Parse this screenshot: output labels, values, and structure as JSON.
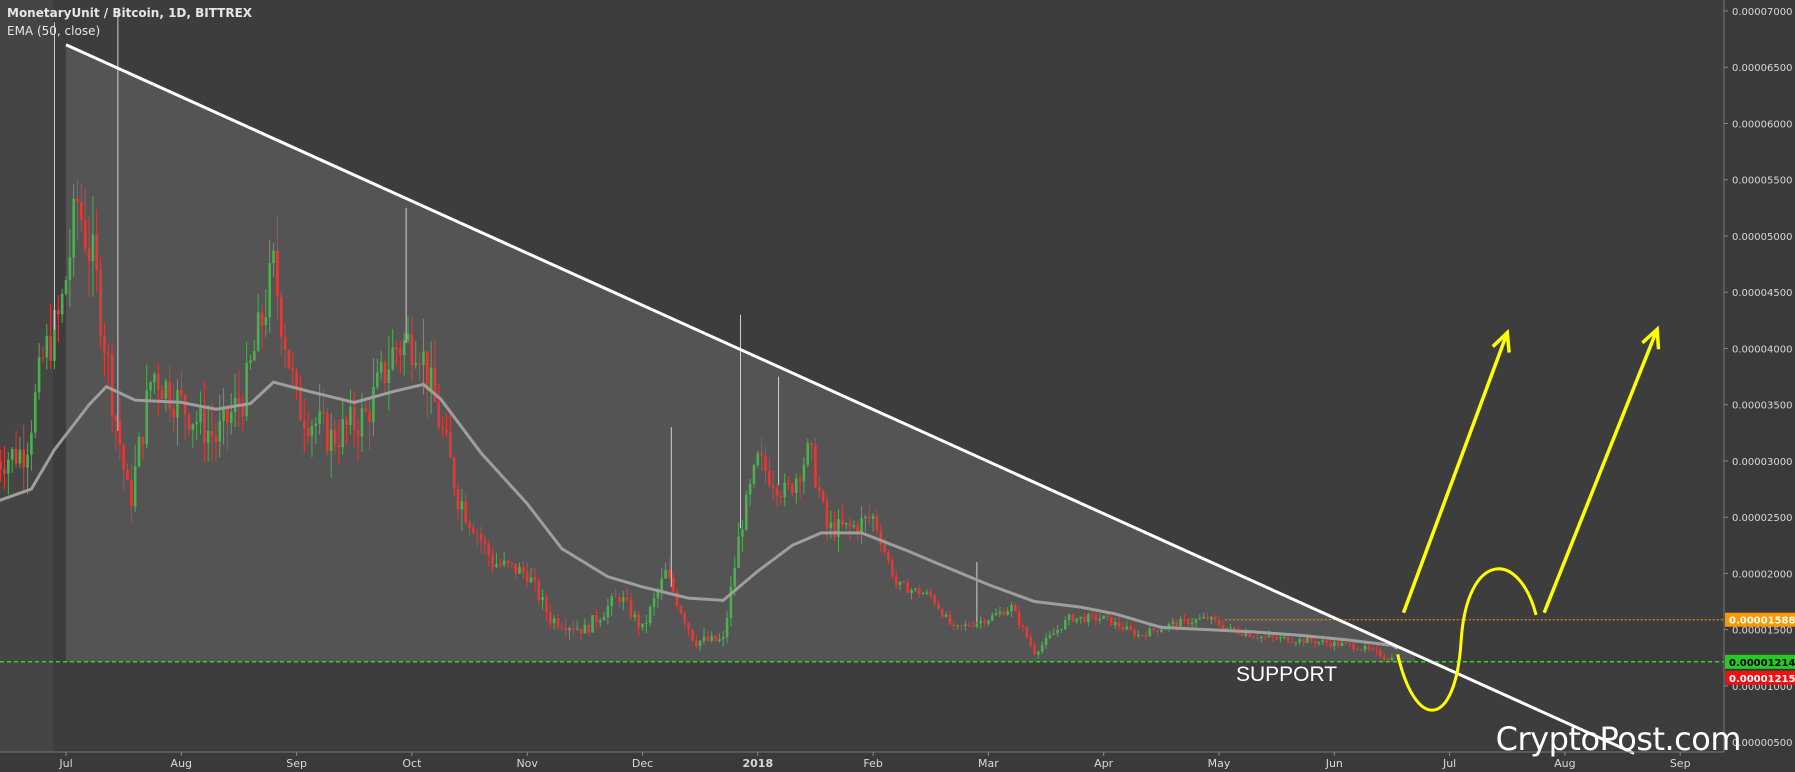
{
  "header": {
    "title": "MonetaryUnit / Bitcoin, 1D, BITTREX",
    "indicator": "EMA (50, close)"
  },
  "watermark": "CryptoPost.com",
  "annotations": {
    "support_label": "SUPPORT"
  },
  "colors": {
    "background": "#3a3a3a",
    "triangle_fill": "#585858",
    "up_candle": "#4caf50",
    "down_candle": "#e53935",
    "ema_line": "#9e9e9e",
    "trendline": "#ffffff",
    "support_line": "#22dd22",
    "resistance_line": "#ff9800",
    "projection": "#ffff00"
  },
  "chart_data": {
    "type": "candlestick",
    "title": "MonetaryUnit / Bitcoin, 1D, BITTREX",
    "y_axis": {
      "ticks": [
        "0.00000500",
        "0.00001000",
        "0.00001500",
        "0.00002000",
        "0.00002500",
        "0.00003000",
        "0.00003500",
        "0.00004000",
        "0.00004500",
        "0.00005000",
        "0.00005500",
        "0.00006000",
        "0.00006500",
        "0.00007000"
      ],
      "range": [
        4e-06,
        7.05e-05
      ],
      "position": "right"
    },
    "x_axis": {
      "ticks": [
        "Jul",
        "Aug",
        "Sep",
        "Oct",
        "Nov",
        "Dec",
        "2018",
        "Feb",
        "Mar",
        "Apr",
        "May",
        "Jun",
        "Jul",
        "Aug",
        "Sep"
      ],
      "range_months": [
        0,
        14.7
      ]
    },
    "price_badges": [
      {
        "value": "0.00001588",
        "color": "#ff9800"
      },
      {
        "value": "0.00001214",
        "color": "#22cc22"
      },
      {
        "value": "0.00001215",
        "color": "#ee1111"
      }
    ],
    "levels": {
      "support": 1.214e-05,
      "resistance": 1.588e-05
    },
    "ema_50": [
      [
        -0.6,
        2.64e-05
      ],
      [
        -0.3,
        2.75e-05
      ],
      [
        -0.1,
        3.1e-05
      ],
      [
        0.2,
        3.5e-05
      ],
      [
        0.35,
        3.66e-05
      ],
      [
        0.6,
        3.54e-05
      ],
      [
        1.0,
        3.52e-05
      ],
      [
        1.3,
        3.46e-05
      ],
      [
        1.6,
        3.51e-05
      ],
      [
        1.8,
        3.7e-05
      ],
      [
        2.1,
        3.62e-05
      ],
      [
        2.5,
        3.52e-05
      ],
      [
        2.85,
        3.62e-05
      ],
      [
        3.1,
        3.68e-05
      ],
      [
        3.25,
        3.55e-05
      ],
      [
        3.6,
        3.07e-05
      ],
      [
        4.0,
        2.62e-05
      ],
      [
        4.3,
        2.22e-05
      ],
      [
        4.7,
        1.97e-05
      ],
      [
        5.0,
        1.88e-05
      ],
      [
        5.4,
        1.78e-05
      ],
      [
        5.7,
        1.76e-05
      ],
      [
        6.0,
        2.02e-05
      ],
      [
        6.3,
        2.25e-05
      ],
      [
        6.55,
        2.36e-05
      ],
      [
        6.9,
        2.36e-05
      ],
      [
        7.3,
        2.2e-05
      ],
      [
        7.6,
        2.07e-05
      ],
      [
        8.0,
        1.9e-05
      ],
      [
        8.4,
        1.75e-05
      ],
      [
        8.8,
        1.7e-05
      ],
      [
        9.1,
        1.64e-05
      ],
      [
        9.5,
        1.52e-05
      ],
      [
        9.9,
        1.5e-05
      ],
      [
        10.3,
        1.48e-05
      ],
      [
        10.7,
        1.45e-05
      ],
      [
        11.1,
        1.41e-05
      ],
      [
        11.5,
        1.36e-05
      ],
      [
        11.55,
        1.33e-05
      ]
    ],
    "trendline": {
      "from": [
        0.0,
        6.7e-05
      ],
      "to": [
        13.6,
        4e-06
      ]
    },
    "candle_path": [
      [
        -0.6,
        3e-05
      ],
      [
        -0.35,
        3.1e-05
      ],
      [
        -0.2,
        3.9e-05
      ],
      [
        -0.05,
        4.3e-05
      ],
      [
        0.1,
        5.3e-05
      ],
      [
        0.25,
        4.7e-05
      ],
      [
        0.4,
        3.6e-05
      ],
      [
        0.55,
        2.6e-05
      ],
      [
        0.75,
        3.8e-05
      ],
      [
        1.0,
        3.5e-05
      ],
      [
        1.3,
        3.2e-05
      ],
      [
        1.55,
        3.6e-05
      ],
      [
        1.8,
        4.7e-05
      ],
      [
        2.0,
        3.5e-05
      ],
      [
        2.3,
        3.2e-05
      ],
      [
        2.6,
        3.4e-05
      ],
      [
        2.85,
        4e-05
      ],
      [
        3.05,
        4.1e-05
      ],
      [
        3.2,
        3.5e-05
      ],
      [
        3.4,
        2.7e-05
      ],
      [
        3.7,
        2.1e-05
      ],
      [
        4.0,
        2e-05
      ],
      [
        4.2,
        1.6e-05
      ],
      [
        4.5,
        1.5e-05
      ],
      [
        4.8,
        1.8e-05
      ],
      [
        5.0,
        1.5e-05
      ],
      [
        5.2,
        2e-05
      ],
      [
        5.45,
        1.4e-05
      ],
      [
        5.7,
        1.4e-05
      ],
      [
        5.85,
        2.4e-05
      ],
      [
        6.0,
        3e-05
      ],
      [
        6.25,
        2.7e-05
      ],
      [
        6.45,
        3.1e-05
      ],
      [
        6.6,
        2.4e-05
      ],
      [
        6.8,
        2.4e-05
      ],
      [
        7.0,
        2.5e-05
      ],
      [
        7.2,
        1.9e-05
      ],
      [
        7.5,
        1.8e-05
      ],
      [
        7.7,
        1.5e-05
      ],
      [
        8.0,
        1.6e-05
      ],
      [
        8.2,
        1.7e-05
      ],
      [
        8.4,
        1.3e-05
      ],
      [
        8.7,
        1.6e-05
      ],
      [
        9.0,
        1.6e-05
      ],
      [
        9.3,
        1.45e-05
      ],
      [
        9.6,
        1.55e-05
      ],
      [
        9.9,
        1.6e-05
      ],
      [
        10.1,
        1.5e-05
      ],
      [
        10.4,
        1.43e-05
      ],
      [
        10.8,
        1.4e-05
      ],
      [
        11.2,
        1.35e-05
      ],
      [
        11.5,
        1.24e-05
      ]
    ],
    "volatile_spikes": [
      [
        -0.1,
        6.9e-05
      ],
      [
        0.45,
        7e-05
      ],
      [
        2.95,
        5.25e-05
      ],
      [
        5.25,
        3.3e-05
      ],
      [
        5.85,
        4.3e-05
      ],
      [
        6.18,
        3.75e-05
      ],
      [
        7.9,
        2.1e-05
      ]
    ]
  }
}
